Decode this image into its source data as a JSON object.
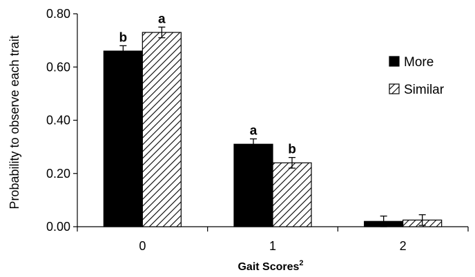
{
  "chart_data": {
    "type": "bar",
    "categories": [
      "0",
      "1",
      "2"
    ],
    "series": [
      {
        "name": "More",
        "values": [
          0.66,
          0.31,
          0.02
        ],
        "errors": [
          0.02,
          0.02,
          0.02
        ],
        "significance": [
          "b",
          "a",
          ""
        ],
        "fill": "#000000",
        "pattern": "solid"
      },
      {
        "name": "Similar",
        "values": [
          0.73,
          0.24,
          0.025
        ],
        "errors": [
          0.02,
          0.02,
          0.02
        ],
        "significance": [
          "a",
          "b",
          ""
        ],
        "fill": "#ffffff",
        "pattern": "diagonal-hatch"
      }
    ],
    "xlabel": "Gait Scores",
    "xlabel_superscript": "2",
    "ylabel": "Probability to observe each trait",
    "ylim": [
      0,
      0.8
    ],
    "yticks": [
      "0.00",
      "0.20",
      "0.40",
      "0.60",
      "0.80"
    ],
    "yticks_values": [
      0,
      0.2,
      0.4,
      0.6,
      0.8
    ],
    "grid": false,
    "legend_position": "right"
  }
}
